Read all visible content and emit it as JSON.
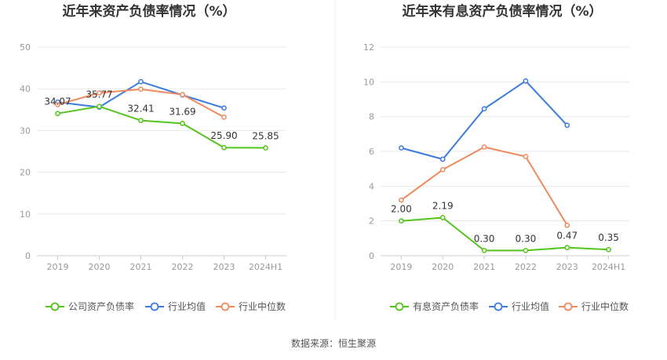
{
  "source": "数据来源：恒生聚源",
  "chart_data": [
    {
      "type": "line",
      "title": "近年来资产负债率情况（%）",
      "categories": [
        "2019",
        "2020",
        "2021",
        "2022",
        "2023",
        "2024H1"
      ],
      "ylim": [
        0,
        50
      ],
      "yticks": [
        0,
        10,
        20,
        30,
        40,
        50
      ],
      "grid": true,
      "legend_position": "bottom",
      "series": [
        {
          "name": "公司资产负债率",
          "color": "#52c41a",
          "values": [
            34.07,
            35.77,
            32.41,
            31.69,
            25.9,
            25.85
          ],
          "labels": [
            "34.07",
            "35.77",
            "32.41",
            "31.69",
            "25.90",
            "25.85"
          ]
        },
        {
          "name": "行业均值",
          "color": "#3b7be0",
          "values": [
            36.8,
            35.6,
            41.7,
            38.5,
            35.4,
            null
          ]
        },
        {
          "name": "行业中位数",
          "color": "#f08a5d",
          "values": [
            36.2,
            39.0,
            39.9,
            38.6,
            33.2,
            null
          ]
        }
      ]
    },
    {
      "type": "line",
      "title": "近年来有息资产负债率情况（%）",
      "categories": [
        "2019",
        "2020",
        "2021",
        "2022",
        "2023",
        "2024H1"
      ],
      "ylim": [
        0,
        12
      ],
      "yticks": [
        0,
        2,
        4,
        6,
        8,
        10,
        12
      ],
      "grid": true,
      "legend_position": "bottom",
      "series": [
        {
          "name": "有息资产负债率",
          "color": "#52c41a",
          "values": [
            2.0,
            2.19,
            0.3,
            0.3,
            0.47,
            0.35
          ],
          "labels": [
            "2.00",
            "2.19",
            "0.30",
            "0.30",
            "0.47",
            "0.35"
          ]
        },
        {
          "name": "行业均值",
          "color": "#3b7be0",
          "values": [
            6.2,
            5.55,
            8.45,
            10.05,
            7.5,
            null
          ]
        },
        {
          "name": "行业中位数",
          "color": "#f08a5d",
          "values": [
            3.2,
            4.95,
            6.25,
            5.7,
            1.75,
            null
          ]
        }
      ]
    }
  ]
}
